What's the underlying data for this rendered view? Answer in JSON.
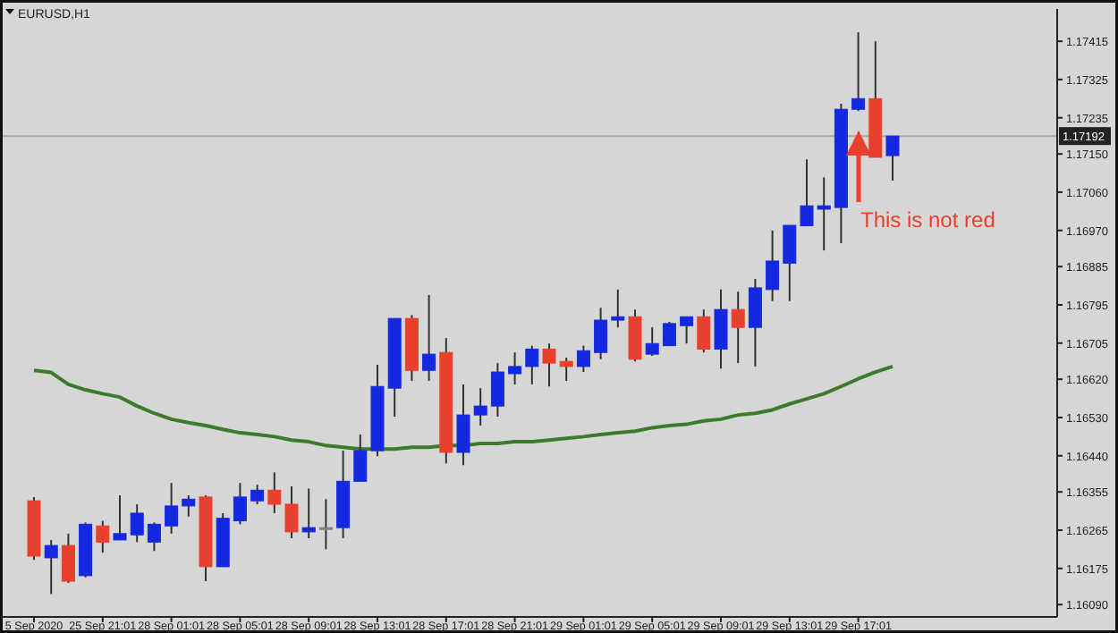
{
  "chart_data": {
    "type": "candlestick",
    "title": "EURUSD,H1",
    "categories": [
      "5 Sep 2020",
      null,
      null,
      null,
      "25 Sep 21:01",
      null,
      null,
      null,
      "28 Sep 01:01",
      null,
      null,
      null,
      "28 Sep 05:01",
      null,
      null,
      null,
      "28 Sep 09:01",
      null,
      null,
      null,
      "28 Sep 13:01",
      null,
      null,
      null,
      "28 Sep 17:01",
      null,
      null,
      null,
      "28 Sep 21:01",
      null,
      null,
      null,
      "29 Sep 01:01",
      null,
      null,
      null,
      "29 Sep 05:01",
      null,
      null,
      null,
      "29 Sep 09:01",
      null,
      null,
      null,
      "29 Sep 13:01",
      null,
      null,
      null,
      "29 Sep 17:01",
      null,
      null
    ],
    "ohlc": [
      [
        1.16334,
        1.16343,
        1.16195,
        1.16204
      ],
      [
        1.162,
        1.16242,
        1.16115,
        1.16229
      ],
      [
        1.16229,
        1.16257,
        1.16141,
        1.16145
      ],
      [
        1.16158,
        1.16283,
        1.16154,
        1.16279
      ],
      [
        1.16275,
        1.16287,
        1.16212,
        1.16237
      ],
      [
        1.16242,
        1.16347,
        1.16242,
        1.16257
      ],
      [
        1.16254,
        1.16326,
        1.16237,
        1.16305
      ],
      [
        1.16237,
        1.16283,
        1.16216,
        1.16279
      ],
      [
        1.16275,
        1.16376,
        1.16257,
        1.16322
      ],
      [
        1.16322,
        1.16347,
        1.16297,
        1.16338
      ],
      [
        1.16343,
        1.16347,
        1.16145,
        1.16179
      ],
      [
        1.16179,
        1.16305,
        1.16179,
        1.16293
      ],
      [
        1.16287,
        1.16376,
        1.16279,
        1.16343
      ],
      [
        1.16334,
        1.16372,
        1.16326,
        1.16359
      ],
      [
        1.16359,
        1.16401,
        1.16305,
        1.16326
      ],
      [
        1.16326,
        1.16368,
        1.16246,
        1.16261
      ],
      [
        1.16261,
        1.16363,
        1.16246,
        1.16271
      ],
      [
        1.16271,
        1.16338,
        1.1622,
        1.16271
      ],
      [
        1.16271,
        1.16452,
        1.16246,
        1.1638
      ],
      [
        1.1638,
        1.1649,
        1.1638,
        1.16452
      ],
      [
        1.16452,
        1.16654,
        1.16439,
        1.16603
      ],
      [
        1.16599,
        1.16763,
        1.16532,
        1.16763
      ],
      [
        1.16763,
        1.16771,
        1.16616,
        1.16641
      ],
      [
        1.16641,
        1.16818,
        1.16616,
        1.16679
      ],
      [
        1.16683,
        1.16717,
        1.16422,
        1.16448
      ],
      [
        1.16448,
        1.16608,
        1.16418,
        1.16536
      ],
      [
        1.16536,
        1.16599,
        1.16511,
        1.16557
      ],
      [
        1.16557,
        1.16658,
        1.16532,
        1.16637
      ],
      [
        1.16633,
        1.16683,
        1.16608,
        1.1665
      ],
      [
        1.1665,
        1.16699,
        1.16608,
        1.16691
      ],
      [
        1.16691,
        1.16704,
        1.16603,
        1.16658
      ],
      [
        1.16662,
        1.16671,
        1.16616,
        1.1665
      ],
      [
        1.1665,
        1.16699,
        1.16637,
        1.16687
      ],
      [
        1.16683,
        1.16788,
        1.16667,
        1.16759
      ],
      [
        1.16759,
        1.16831,
        1.16742,
        1.16767
      ],
      [
        1.16767,
        1.16784,
        1.16662,
        1.16667
      ],
      [
        1.16679,
        1.16742,
        1.16675,
        1.16704
      ],
      [
        1.16699,
        1.16755,
        1.16699,
        1.16751
      ],
      [
        1.16746,
        1.16767,
        1.16704,
        1.16767
      ],
      [
        1.16767,
        1.16784,
        1.16683,
        1.16691
      ],
      [
        1.16691,
        1.16831,
        1.16645,
        1.16784
      ],
      [
        1.16784,
        1.16826,
        1.16658,
        1.16742
      ],
      [
        1.16742,
        1.16856,
        1.1665,
        1.16835
      ],
      [
        1.16831,
        1.1697,
        1.16804,
        1.16898
      ],
      [
        1.16893,
        1.16982,
        1.16804,
        1.16982
      ],
      [
        1.16981,
        1.17137,
        1.16981,
        1.17028
      ],
      [
        1.1702,
        1.17095,
        1.16923,
        1.17028
      ],
      [
        1.17024,
        1.17268,
        1.1694,
        1.17255
      ],
      [
        1.17255,
        1.17436,
        1.17251,
        1.1728
      ],
      [
        1.1728,
        1.17415,
        1.17142,
        1.17142
      ],
      [
        1.17146,
        1.17192,
        1.17087,
        1.17192
      ]
    ],
    "colors": [
      "#e8402c",
      "#1428e0",
      "#e8402c",
      "#1428e0",
      "#e8402c",
      "#1428e0",
      "#1428e0",
      "#1428e0",
      "#1428e0",
      "#1428e0",
      "#e8402c",
      "#1428e0",
      "#1428e0",
      "#1428e0",
      "#e8402c",
      "#e8402c",
      "#1428e0",
      "#808080",
      "#1428e0",
      "#1428e0",
      "#1428e0",
      "#1428e0",
      "#e8402c",
      "#1428e0",
      "#e8402c",
      "#1428e0",
      "#1428e0",
      "#1428e0",
      "#1428e0",
      "#1428e0",
      "#e8402c",
      "#e8402c",
      "#1428e0",
      "#1428e0",
      "#1428e0",
      "#e8402c",
      "#1428e0",
      "#1428e0",
      "#1428e0",
      "#e8402c",
      "#1428e0",
      "#e8402c",
      "#1428e0",
      "#1428e0",
      "#1428e0",
      "#1428e0",
      "#1428e0",
      "#1428e0",
      "#1428e0",
      "#e8402c",
      "#1428e0"
    ],
    "series": [
      {
        "type": "line",
        "color": "#3c7a2c",
        "values": [
          1.16641,
          1.16636,
          1.16608,
          1.16595,
          1.16586,
          1.16578,
          1.16557,
          1.1654,
          1.16526,
          1.16518,
          1.16511,
          1.16502,
          1.16494,
          1.1649,
          1.16485,
          1.16477,
          1.16473,
          1.16464,
          1.1646,
          1.16456,
          1.16456,
          1.16456,
          1.1646,
          1.1646,
          1.16464,
          1.16464,
          1.16469,
          1.16469,
          1.16473,
          1.16473,
          1.16477,
          1.16481,
          1.16485,
          1.1649,
          1.16494,
          1.16498,
          1.16506,
          1.16511,
          1.16514,
          1.16522,
          1.16526,
          1.16536,
          1.1654,
          1.16548,
          1.16562,
          1.16574,
          1.16586,
          1.16603,
          1.16621,
          1.16637,
          1.1665
        ]
      }
    ],
    "ylim": [
      1.16061,
      1.17491
    ],
    "yticks": [
      1.17415,
      1.17325,
      1.17235,
      {
        "value": 1.1715,
        "label": "1.17150"
      },
      {
        "value": 1.1706,
        "label": "1.17060"
      },
      {
        "value": 1.1697,
        "label": "1.16970"
      },
      1.16885,
      1.16795,
      1.16705,
      {
        "value": 1.1662,
        "label": "1.16620"
      },
      {
        "value": 1.1653,
        "label": "1.16530"
      },
      {
        "value": 1.1644,
        "label": "1.16440"
      },
      1.16355,
      1.16265,
      1.16175,
      {
        "value": 1.1609,
        "label": "1.16090"
      }
    ],
    "ref_lines": [
      {
        "axis": "y",
        "value": 1.17192,
        "label": "1.17192",
        "color": "#a8a8a8"
      }
    ],
    "annotations": [
      "This is not red"
    ],
    "grid": false
  }
}
